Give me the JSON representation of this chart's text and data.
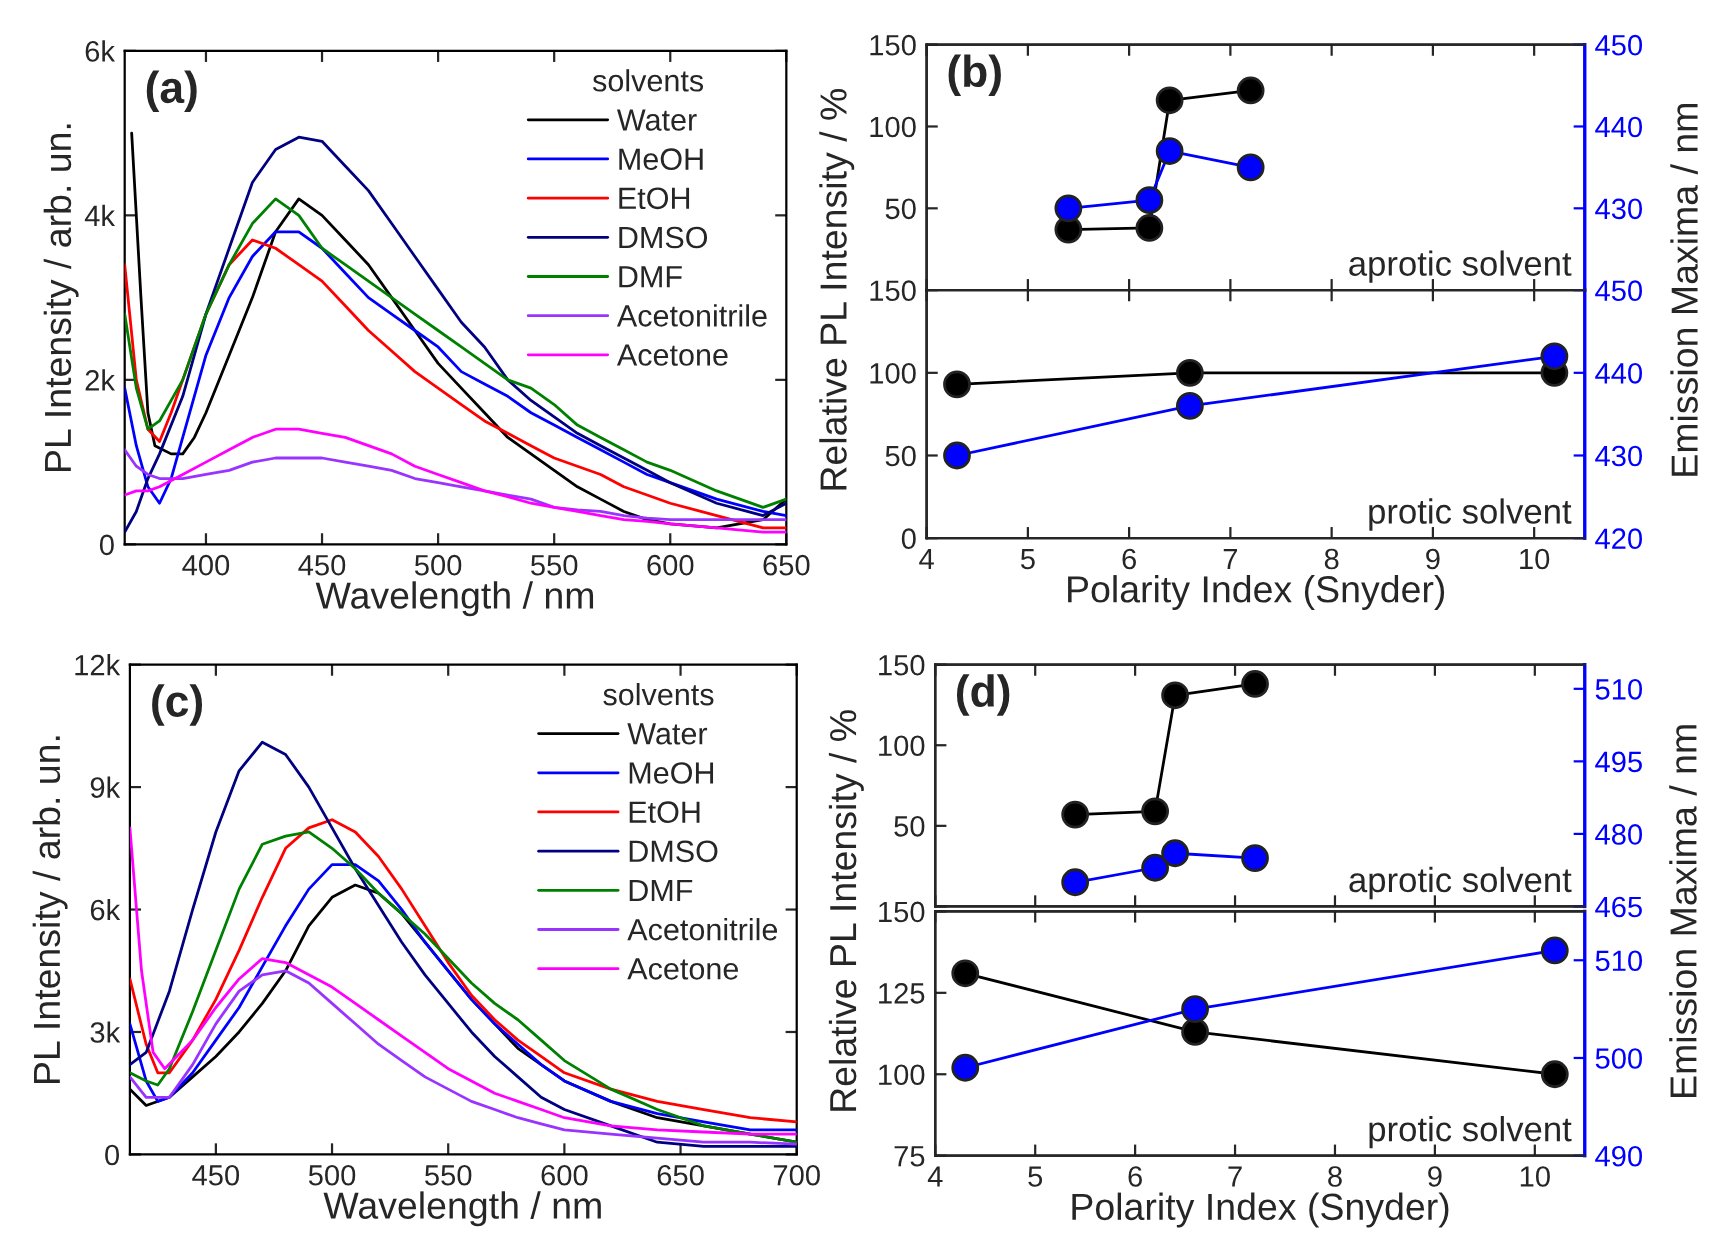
{
  "chart_data": [
    {
      "type": "line",
      "xlabel": "Wavelength / nm",
      "ylabel": "PL Intensity / arb. un.",
      "legend_title": "solvents",
      "legend": "top right",
      "grid": false,
      "line_style": "solid",
      "annotations": [
        "(a)"
      ],
      "xlim": [
        365,
        650
      ],
      "xticks": [
        400,
        450,
        500,
        550,
        600,
        650
      ],
      "ylim": [
        0,
        6000
      ],
      "yticks": [
        {
          "value": 0,
          "label": "0"
        },
        {
          "value": 2000,
          "label": "2k"
        },
        {
          "value": 4000,
          "label": "4k"
        },
        {
          "value": 6000,
          "label": "6k"
        }
      ],
      "series": [
        {
          "name": "Water",
          "color": "#000000",
          "x": [
            368,
            372,
            375,
            378,
            385,
            390,
            395,
            400,
            410,
            420,
            430,
            440,
            450,
            460,
            470,
            480,
            490,
            500,
            510,
            520,
            530,
            540,
            550,
            560,
            570,
            580,
            590,
            600,
            620,
            640,
            650
          ],
          "values": [
            5000,
            3000,
            1600,
            1200,
            1100,
            1100,
            1300,
            1600,
            2300,
            3000,
            3800,
            4200,
            4000,
            3700,
            3400,
            3000,
            2600,
            2200,
            1900,
            1600,
            1300,
            1100,
            900,
            700,
            550,
            400,
            300,
            250,
            200,
            300,
            550
          ]
        },
        {
          "name": "MeOH",
          "color": "#0000ff",
          "x": [
            365,
            370,
            375,
            380,
            385,
            390,
            400,
            410,
            420,
            430,
            440,
            450,
            460,
            470,
            480,
            490,
            500,
            510,
            520,
            530,
            540,
            550,
            560,
            570,
            580,
            590,
            600,
            620,
            640,
            650
          ],
          "values": [
            1900,
            1200,
            700,
            500,
            800,
            1300,
            2300,
            3000,
            3500,
            3800,
            3800,
            3600,
            3300,
            3000,
            2800,
            2600,
            2400,
            2100,
            1950,
            1800,
            1600,
            1450,
            1300,
            1150,
            1000,
            850,
            750,
            550,
            400,
            350
          ]
        },
        {
          "name": "EtOH",
          "color": "#ff0000",
          "x": [
            365,
            370,
            375,
            380,
            385,
            390,
            400,
            410,
            420,
            430,
            440,
            450,
            460,
            470,
            480,
            490,
            500,
            510,
            520,
            530,
            540,
            550,
            560,
            570,
            580,
            590,
            600,
            620,
            640,
            650
          ],
          "values": [
            3400,
            2000,
            1400,
            1250,
            1600,
            2000,
            2800,
            3400,
            3700,
            3600,
            3400,
            3200,
            2900,
            2600,
            2350,
            2100,
            1900,
            1700,
            1500,
            1350,
            1200,
            1050,
            950,
            850,
            700,
            600,
            500,
            350,
            200,
            200
          ]
        },
        {
          "name": "DMSO",
          "color": "#000080",
          "x": [
            365,
            370,
            375,
            380,
            390,
            400,
            410,
            420,
            430,
            440,
            450,
            460,
            470,
            480,
            490,
            500,
            510,
            520,
            530,
            540,
            550,
            560,
            570,
            580,
            590,
            600,
            620,
            640,
            650
          ],
          "values": [
            150,
            400,
            800,
            1100,
            1800,
            2800,
            3600,
            4400,
            4800,
            4950,
            4900,
            4600,
            4300,
            3900,
            3500,
            3100,
            2700,
            2400,
            2000,
            1750,
            1550,
            1350,
            1200,
            1050,
            900,
            750,
            500,
            350,
            500
          ]
        },
        {
          "name": "DMF",
          "color": "#008000",
          "x": [
            365,
            370,
            375,
            380,
            390,
            400,
            410,
            420,
            430,
            440,
            450,
            460,
            470,
            480,
            490,
            500,
            510,
            520,
            530,
            540,
            550,
            560,
            570,
            580,
            590,
            600,
            620,
            640,
            650
          ],
          "values": [
            2800,
            1900,
            1400,
            1500,
            2000,
            2800,
            3400,
            3900,
            4200,
            4000,
            3600,
            3400,
            3200,
            3000,
            2800,
            2600,
            2400,
            2200,
            2000,
            1900,
            1700,
            1450,
            1300,
            1150,
            1000,
            900,
            650,
            450,
            550
          ]
        },
        {
          "name": "Acetonitrile",
          "color": "#9933ff",
          "x": [
            365,
            370,
            375,
            380,
            390,
            400,
            410,
            420,
            430,
            440,
            450,
            460,
            470,
            480,
            490,
            500,
            510,
            520,
            530,
            540,
            550,
            560,
            570,
            580,
            590,
            600,
            620,
            640,
            650
          ],
          "values": [
            1150,
            950,
            850,
            800,
            800,
            850,
            900,
            1000,
            1050,
            1050,
            1050,
            1000,
            950,
            900,
            800,
            750,
            700,
            650,
            600,
            550,
            450,
            420,
            400,
            350,
            320,
            300,
            300,
            300,
            300
          ]
        },
        {
          "name": "Acetone",
          "color": "#ff00ff",
          "x": [
            365,
            370,
            375,
            380,
            390,
            400,
            410,
            420,
            430,
            440,
            450,
            460,
            470,
            480,
            490,
            500,
            510,
            520,
            530,
            540,
            550,
            560,
            570,
            580,
            590,
            600,
            620,
            640,
            650
          ],
          "values": [
            600,
            650,
            650,
            700,
            850,
            1000,
            1150,
            1300,
            1400,
            1400,
            1350,
            1300,
            1200,
            1100,
            950,
            850,
            750,
            650,
            580,
            500,
            450,
            400,
            350,
            300,
            280,
            250,
            200,
            150,
            150
          ]
        }
      ]
    },
    {
      "type": "line",
      "marker": "circle",
      "grid": false,
      "line_style": "solid",
      "tick_labels": "y",
      "annotations": [
        "(b)",
        "aprotic solvent"
      ],
      "xlim": [
        4,
        10.5
      ],
      "xticks": [
        4,
        5,
        6,
        7,
        8,
        9,
        10
      ],
      "ylim": [
        0,
        150
      ],
      "yticks": [
        {
          "value": 0,
          "label": null
        },
        50,
        100,
        150
      ],
      "y2lim": [
        420,
        450
      ],
      "y2ticks": [
        {
          "value": 420,
          "label": null
        },
        430,
        440,
        450
      ],
      "x": [
        5.4,
        6.2,
        6.4,
        7.2
      ],
      "series": [
        {
          "color": "#000000",
          "values": [
            37,
            38,
            116,
            122
          ]
        },
        {
          "color": "#0000ff",
          "axis": "y2",
          "values": [
            430,
            431,
            437,
            435
          ]
        }
      ]
    },
    {
      "type": "line",
      "marker": "circle",
      "grid": false,
      "line_style": "solid",
      "annotations": [
        "protic solvent"
      ],
      "xlabel": "Polarity Index (Snyder)",
      "ylabel": "Relative PL Intensity / %",
      "y2label": "Emission Maxima / nm",
      "xlim": [
        4,
        10.5
      ],
      "xticks": [
        4,
        5,
        6,
        7,
        8,
        9,
        10
      ],
      "ylim": [
        0,
        150
      ],
      "yticks": [
        0,
        50,
        100,
        150
      ],
      "y2lim": [
        420,
        450
      ],
      "y2ticks": [
        420,
        430,
        440,
        450
      ],
      "x": [
        4.3,
        6.6,
        10.2
      ],
      "series": [
        {
          "color": "#000000",
          "values": [
            93,
            100,
            100
          ]
        },
        {
          "color": "#0000ff",
          "axis": "y2",
          "values": [
            430,
            436,
            442
          ]
        }
      ]
    },
    {
      "type": "line",
      "xlabel": "Wavelength / nm",
      "ylabel": "PL Intensity / arb. un.",
      "legend_title": "solvents",
      "legend": "top right",
      "grid": false,
      "line_style": "solid",
      "annotations": [
        "(c)"
      ],
      "xlim": [
        413,
        700
      ],
      "xticks": [
        450,
        500,
        550,
        600,
        650,
        700
      ],
      "ylim": [
        0,
        12000
      ],
      "yticks": [
        {
          "value": 0,
          "label": "0"
        },
        {
          "value": 3000,
          "label": "3k"
        },
        {
          "value": 6000,
          "label": "6k"
        },
        {
          "value": 9000,
          "label": "9k"
        },
        {
          "value": 12000,
          "label": "12k"
        }
      ],
      "series": [
        {
          "name": "Water",
          "color": "#000000",
          "x": [
            413,
            420,
            430,
            440,
            450,
            460,
            470,
            480,
            490,
            500,
            510,
            520,
            530,
            540,
            550,
            560,
            570,
            580,
            590,
            600,
            620,
            640,
            660,
            680,
            700
          ],
          "values": [
            1600,
            1200,
            1400,
            1900,
            2400,
            3000,
            3700,
            4500,
            5600,
            6300,
            6600,
            6400,
            5900,
            5200,
            4500,
            3800,
            3200,
            2600,
            2200,
            1800,
            1300,
            900,
            700,
            500,
            300
          ]
        },
        {
          "name": "MeOH",
          "color": "#0000ff",
          "x": [
            413,
            420,
            425,
            430,
            440,
            450,
            460,
            470,
            480,
            490,
            500,
            510,
            520,
            530,
            540,
            550,
            560,
            570,
            580,
            590,
            600,
            620,
            640,
            660,
            680,
            700
          ],
          "values": [
            3200,
            1800,
            1300,
            1400,
            2000,
            2800,
            3600,
            4600,
            5600,
            6500,
            7100,
            7100,
            6700,
            6000,
            5200,
            4500,
            3800,
            3200,
            2700,
            2200,
            1800,
            1300,
            1000,
            800,
            600,
            600
          ]
        },
        {
          "name": "EtOH",
          "color": "#ff0000",
          "x": [
            413,
            420,
            425,
            430,
            440,
            450,
            460,
            470,
            480,
            490,
            500,
            510,
            520,
            530,
            540,
            550,
            560,
            570,
            580,
            590,
            600,
            620,
            640,
            660,
            680,
            700
          ],
          "values": [
            4300,
            2700,
            2000,
            2000,
            2800,
            3800,
            5000,
            6300,
            7500,
            8000,
            8200,
            7900,
            7300,
            6500,
            5600,
            4700,
            3900,
            3300,
            2800,
            2400,
            2000,
            1600,
            1300,
            1100,
            900,
            800
          ]
        },
        {
          "name": "DMSO",
          "color": "#000080",
          "x": [
            413,
            420,
            430,
            440,
            450,
            460,
            470,
            480,
            490,
            500,
            510,
            520,
            530,
            540,
            550,
            560,
            570,
            580,
            590,
            600,
            620,
            640,
            660,
            680,
            700
          ],
          "values": [
            2200,
            2500,
            4000,
            6000,
            7900,
            9400,
            10100,
            9800,
            9000,
            8000,
            7000,
            6100,
            5200,
            4400,
            3700,
            3000,
            2400,
            1900,
            1400,
            1100,
            700,
            300,
            200,
            200,
            200
          ]
        },
        {
          "name": "DMF",
          "color": "#008000",
          "x": [
            413,
            420,
            425,
            430,
            440,
            450,
            460,
            470,
            480,
            490,
            500,
            510,
            520,
            530,
            540,
            550,
            560,
            570,
            580,
            590,
            600,
            620,
            640,
            660,
            680,
            700
          ],
          "values": [
            2000,
            1800,
            1700,
            2100,
            3500,
            5000,
            6500,
            7600,
            7800,
            7900,
            7500,
            7000,
            6400,
            5900,
            5400,
            4800,
            4200,
            3700,
            3300,
            2800,
            2300,
            1600,
            1100,
            700,
            500,
            300
          ]
        },
        {
          "name": "Acetonitrile",
          "color": "#9933ff",
          "x": [
            413,
            420,
            430,
            440,
            450,
            460,
            470,
            480,
            490,
            500,
            510,
            520,
            530,
            540,
            550,
            560,
            570,
            580,
            590,
            600,
            620,
            640,
            660,
            680,
            700
          ],
          "values": [
            1900,
            1400,
            1400,
            2200,
            3200,
            4000,
            4400,
            4500,
            4200,
            3700,
            3200,
            2700,
            2300,
            1900,
            1600,
            1300,
            1100,
            900,
            750,
            600,
            500,
            400,
            300,
            300,
            250
          ]
        },
        {
          "name": "Acetone",
          "color": "#ff00ff",
          "x": [
            413,
            418,
            423,
            428,
            440,
            450,
            460,
            470,
            480,
            490,
            500,
            510,
            520,
            530,
            540,
            550,
            560,
            570,
            580,
            590,
            600,
            620,
            640,
            660,
            680,
            700
          ],
          "values": [
            8000,
            4500,
            2500,
            2100,
            2800,
            3600,
            4300,
            4800,
            4700,
            4400,
            4100,
            3700,
            3300,
            2900,
            2500,
            2100,
            1800,
            1500,
            1300,
            1100,
            900,
            700,
            600,
            550,
            500,
            500
          ]
        }
      ]
    },
    {
      "type": "line",
      "marker": "circle",
      "grid": false,
      "line_style": "solid",
      "tick_labels": "y",
      "annotations": [
        "(d)",
        "aprotic solvent"
      ],
      "xlim": [
        4,
        10.5
      ],
      "xticks": [
        4,
        5,
        6,
        7,
        8,
        9,
        10
      ],
      "ylim": [
        0,
        150
      ],
      "yticks": [
        {
          "value": 0,
          "label": null
        },
        50,
        100,
        150
      ],
      "y2lim": [
        465,
        515
      ],
      "y2ticks": [
        465,
        480,
        495,
        510
      ],
      "x": [
        5.4,
        6.2,
        6.4,
        7.2
      ],
      "series": [
        {
          "color": "#000000",
          "values": [
            57,
            59,
            131,
            138
          ]
        },
        {
          "color": "#0000ff",
          "axis": "y2",
          "values": [
            470,
            473,
            476,
            475
          ]
        }
      ]
    },
    {
      "type": "line",
      "marker": "circle",
      "grid": false,
      "line_style": "solid",
      "annotations": [
        "protic solvent"
      ],
      "xlabel": "Polarity Index (Snyder)",
      "ylabel": "Relative PL Intensity / %",
      "y2label": "Emission Maxima / nm",
      "xlim": [
        4,
        10.5
      ],
      "xticks": [
        4,
        5,
        6,
        7,
        8,
        9,
        10
      ],
      "ylim": [
        75,
        150
      ],
      "yticks": [
        75,
        100,
        125,
        150
      ],
      "y2lim": [
        490,
        515
      ],
      "y2ticks": [
        490,
        500,
        510
      ],
      "x": [
        4.3,
        6.6,
        10.2
      ],
      "series": [
        {
          "color": "#000000",
          "values": [
            131,
            113,
            100
          ]
        },
        {
          "color": "#0000ff",
          "axis": "y2",
          "values": [
            499,
            505,
            511
          ]
        }
      ]
    }
  ]
}
